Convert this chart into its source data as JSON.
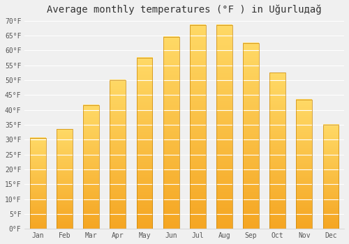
{
  "title": "Average monthly temperatures (°F ) in Uğurluдаğ",
  "months": [
    "Jan",
    "Feb",
    "Mar",
    "Apr",
    "May",
    "Jun",
    "Jul",
    "Aug",
    "Sep",
    "Oct",
    "Nov",
    "Dec"
  ],
  "values": [
    30.5,
    33.5,
    41.5,
    50.0,
    57.5,
    64.5,
    68.5,
    68.5,
    62.5,
    52.5,
    43.5,
    35.0
  ],
  "bar_color_bottom": "#F5A623",
  "bar_color_top": "#FFD966",
  "bar_edge_color": "#C8860A",
  "ylim": [
    0,
    70
  ],
  "ytick_step": 5,
  "background_color": "#f0f0f0",
  "plot_bg_color": "#f0f0f0",
  "grid_color": "#ffffff",
  "title_fontsize": 10,
  "tick_fontsize": 7,
  "tick_color": "#555555"
}
